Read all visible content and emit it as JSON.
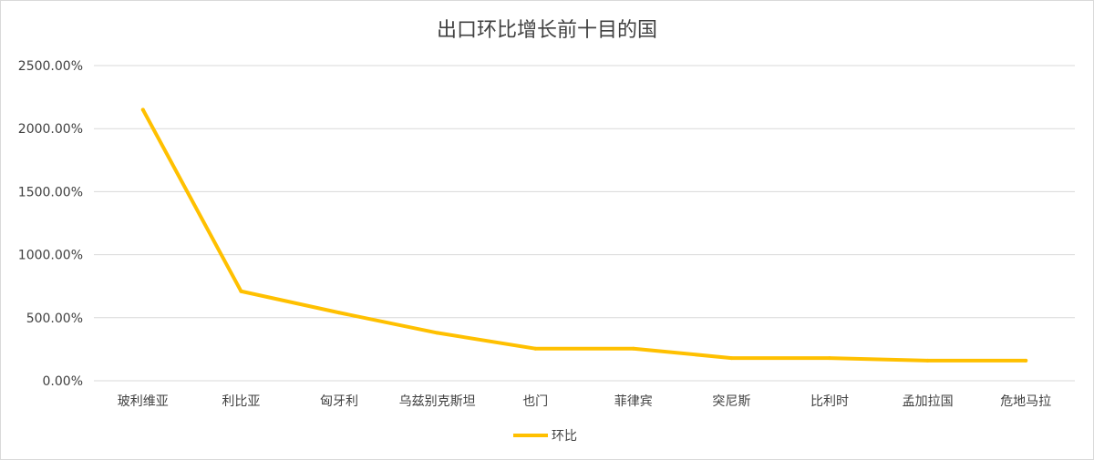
{
  "chart_data": {
    "type": "line",
    "title": "出口环比增长前十目的国",
    "categories": [
      "玻利维亚",
      "利比亚",
      "匈牙利",
      "乌兹别克斯坦",
      "也门",
      "菲律宾",
      "突尼斯",
      "比利时",
      "孟加拉国",
      "危地马拉"
    ],
    "series": [
      {
        "name": "环比",
        "color": "#FFC000",
        "values": [
          21.5,
          7.1,
          5.4,
          3.8,
          2.55,
          2.55,
          1.8,
          1.8,
          1.6,
          1.6
        ]
      }
    ],
    "y_ticks": [
      "0.00%",
      "500.00%",
      "1000.00%",
      "1500.00%",
      "2000.00%",
      "2500.00%"
    ],
    "ylim": [
      0,
      25
    ],
    "y_format": "percent",
    "grid": true,
    "legend_position": "bottom",
    "colors": {
      "gridline": "#d9d9d9",
      "axis_text": "#404040"
    }
  }
}
